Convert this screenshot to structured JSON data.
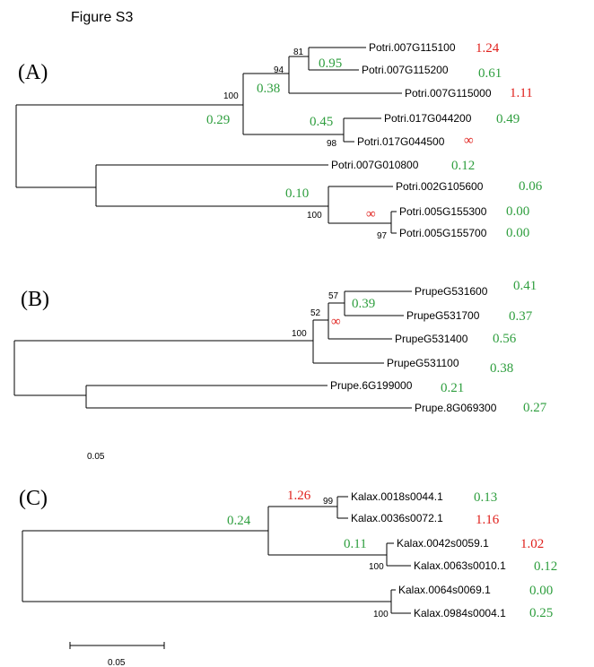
{
  "figure_title": "Figure S3",
  "colors": {
    "line": "#000000",
    "green": "#2e9e3e",
    "red": "#e0201c",
    "text": "#000000"
  },
  "panels": {
    "A": {
      "label": "(A)",
      "taxa": {
        "t1": "Potri.007G115100",
        "t2": "Potri.007G115200",
        "t3": "Potri.007G115000",
        "t4": "Potri.017G044200",
        "t5": "Potri.017G044500",
        "t6": "Potri.007G010800",
        "t7": "Potri.002G105600",
        "t8": "Potri.005G155300",
        "t9": "Potri.005G155700"
      },
      "leaf_values": {
        "t1": "1.24",
        "t2": "0.61",
        "t3": "1.11",
        "t4": "0.49",
        "t5": "∞",
        "t6": "0.12",
        "t7": "0.06",
        "t8": "0.00",
        "t9": "0.00"
      },
      "branch_values": {
        "b81": "0.95",
        "b94": "0.38",
        "b100": "0.29",
        "b98": "0.45",
        "b100b": "0.10",
        "b97": "∞"
      },
      "bootstrap": {
        "n81": "81",
        "n94": "94",
        "n100": "100",
        "n98": "98",
        "n100b": "100",
        "n97": "97"
      }
    },
    "B": {
      "label": "(B)",
      "taxa": {
        "t1": "PrupeG531600",
        "t2": "PrupeG531700",
        "t3": "PrupeG531400",
        "t4": "PrupeG531100",
        "t5": "Prupe.6G199000",
        "t6": "Prupe.8G069300"
      },
      "leaf_values": {
        "t1": "0.41",
        "t2": "0.37",
        "t3": "0.56",
        "t4": "0.38",
        "t5": "0.21",
        "t6": "0.27"
      },
      "branch_values": {
        "b57": "0.39",
        "b52": "∞"
      },
      "bootstrap": {
        "n57": "57",
        "n52": "52",
        "n100": "100"
      },
      "scale_label": "0.05"
    },
    "C": {
      "label": "(C)",
      "taxa": {
        "t1": "Kalax.0018s0044.1",
        "t2": "Kalax.0036s0072.1",
        "t3": "Kalax.0042s0059.1",
        "t4": "Kalax.0063s0010.1",
        "t5": "Kalax.0064s0069.1",
        "t6": "Kalax.0984s0004.1"
      },
      "leaf_values": {
        "t1": "0.13",
        "t2": "1.16",
        "t3": "1.02",
        "t4": "0.12",
        "t5": "0.00",
        "t6": "0.25"
      },
      "branch_values": {
        "b99": "1.26",
        "bmid": "0.24",
        "b100a": "0.11"
      },
      "bootstrap": {
        "n99": "99",
        "n100a": "100",
        "n100b": "100"
      },
      "scale_label": "0.05"
    }
  }
}
